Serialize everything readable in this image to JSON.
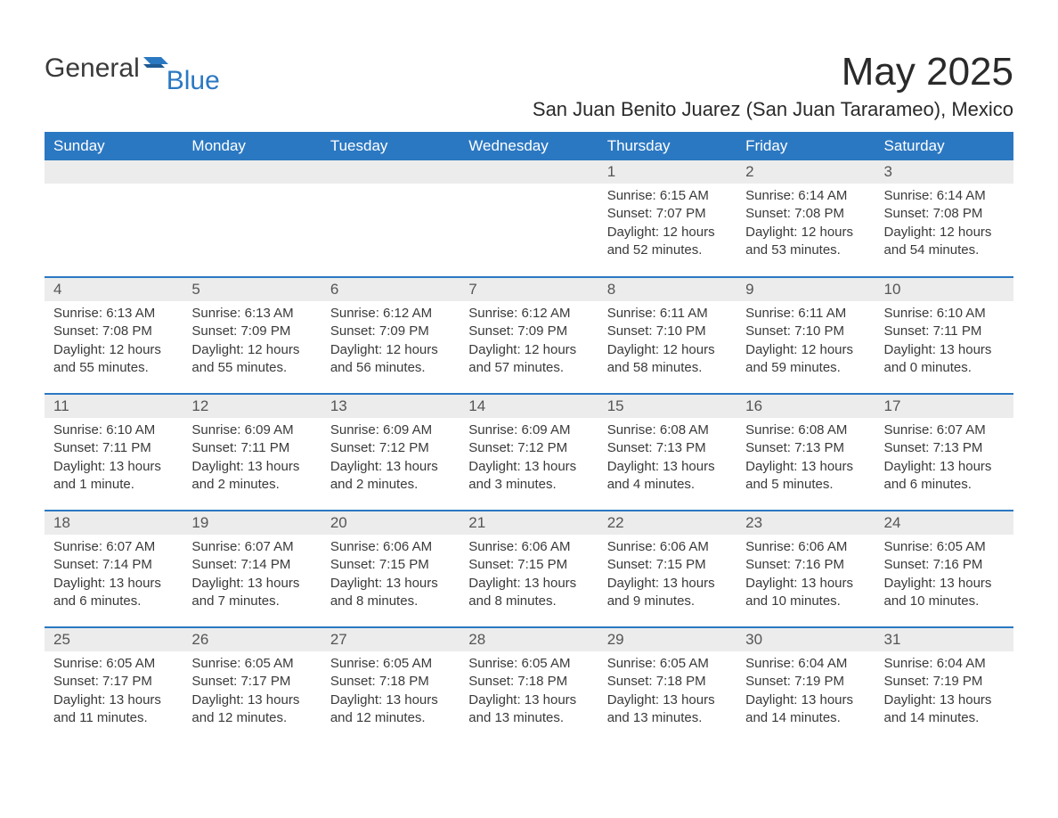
{
  "brand": {
    "text1": "General",
    "text2": "Blue"
  },
  "title": "May 2025",
  "subtitle": "San Juan Benito Juarez (San Juan Tararameo), Mexico",
  "colors": {
    "header_bg": "#2b78c2",
    "header_text": "#ffffff",
    "daynum_bg": "#ececec",
    "row_border": "#2b78c2",
    "body_text": "#3a3a3a",
    "title_text": "#2a2a2a",
    "page_bg": "#ffffff"
  },
  "typography": {
    "title_fontsize": 44,
    "subtitle_fontsize": 22,
    "header_fontsize": 17,
    "daynum_fontsize": 17,
    "data_fontsize": 15
  },
  "weekdays": [
    "Sunday",
    "Monday",
    "Tuesday",
    "Wednesday",
    "Thursday",
    "Friday",
    "Saturday"
  ],
  "layout": {
    "columns": 7,
    "rows": 5,
    "first_day_column_index": 4
  },
  "labels": {
    "sunrise": "Sunrise",
    "sunset": "Sunset",
    "daylight": "Daylight"
  },
  "weeks": [
    [
      null,
      null,
      null,
      null,
      {
        "n": "1",
        "sunrise": "6:15 AM",
        "sunset": "7:07 PM",
        "daylight": "12 hours and 52 minutes."
      },
      {
        "n": "2",
        "sunrise": "6:14 AM",
        "sunset": "7:08 PM",
        "daylight": "12 hours and 53 minutes."
      },
      {
        "n": "3",
        "sunrise": "6:14 AM",
        "sunset": "7:08 PM",
        "daylight": "12 hours and 54 minutes."
      }
    ],
    [
      {
        "n": "4",
        "sunrise": "6:13 AM",
        "sunset": "7:08 PM",
        "daylight": "12 hours and 55 minutes."
      },
      {
        "n": "5",
        "sunrise": "6:13 AM",
        "sunset": "7:09 PM",
        "daylight": "12 hours and 55 minutes."
      },
      {
        "n": "6",
        "sunrise": "6:12 AM",
        "sunset": "7:09 PM",
        "daylight": "12 hours and 56 minutes."
      },
      {
        "n": "7",
        "sunrise": "6:12 AM",
        "sunset": "7:09 PM",
        "daylight": "12 hours and 57 minutes."
      },
      {
        "n": "8",
        "sunrise": "6:11 AM",
        "sunset": "7:10 PM",
        "daylight": "12 hours and 58 minutes."
      },
      {
        "n": "9",
        "sunrise": "6:11 AM",
        "sunset": "7:10 PM",
        "daylight": "12 hours and 59 minutes."
      },
      {
        "n": "10",
        "sunrise": "6:10 AM",
        "sunset": "7:11 PM",
        "daylight": "13 hours and 0 minutes."
      }
    ],
    [
      {
        "n": "11",
        "sunrise": "6:10 AM",
        "sunset": "7:11 PM",
        "daylight": "13 hours and 1 minute."
      },
      {
        "n": "12",
        "sunrise": "6:09 AM",
        "sunset": "7:11 PM",
        "daylight": "13 hours and 2 minutes."
      },
      {
        "n": "13",
        "sunrise": "6:09 AM",
        "sunset": "7:12 PM",
        "daylight": "13 hours and 2 minutes."
      },
      {
        "n": "14",
        "sunrise": "6:09 AM",
        "sunset": "7:12 PM",
        "daylight": "13 hours and 3 minutes."
      },
      {
        "n": "15",
        "sunrise": "6:08 AM",
        "sunset": "7:13 PM",
        "daylight": "13 hours and 4 minutes."
      },
      {
        "n": "16",
        "sunrise": "6:08 AM",
        "sunset": "7:13 PM",
        "daylight": "13 hours and 5 minutes."
      },
      {
        "n": "17",
        "sunrise": "6:07 AM",
        "sunset": "7:13 PM",
        "daylight": "13 hours and 6 minutes."
      }
    ],
    [
      {
        "n": "18",
        "sunrise": "6:07 AM",
        "sunset": "7:14 PM",
        "daylight": "13 hours and 6 minutes."
      },
      {
        "n": "19",
        "sunrise": "6:07 AM",
        "sunset": "7:14 PM",
        "daylight": "13 hours and 7 minutes."
      },
      {
        "n": "20",
        "sunrise": "6:06 AM",
        "sunset": "7:15 PM",
        "daylight": "13 hours and 8 minutes."
      },
      {
        "n": "21",
        "sunrise": "6:06 AM",
        "sunset": "7:15 PM",
        "daylight": "13 hours and 8 minutes."
      },
      {
        "n": "22",
        "sunrise": "6:06 AM",
        "sunset": "7:15 PM",
        "daylight": "13 hours and 9 minutes."
      },
      {
        "n": "23",
        "sunrise": "6:06 AM",
        "sunset": "7:16 PM",
        "daylight": "13 hours and 10 minutes."
      },
      {
        "n": "24",
        "sunrise": "6:05 AM",
        "sunset": "7:16 PM",
        "daylight": "13 hours and 10 minutes."
      }
    ],
    [
      {
        "n": "25",
        "sunrise": "6:05 AM",
        "sunset": "7:17 PM",
        "daylight": "13 hours and 11 minutes."
      },
      {
        "n": "26",
        "sunrise": "6:05 AM",
        "sunset": "7:17 PM",
        "daylight": "13 hours and 12 minutes."
      },
      {
        "n": "27",
        "sunrise": "6:05 AM",
        "sunset": "7:18 PM",
        "daylight": "13 hours and 12 minutes."
      },
      {
        "n": "28",
        "sunrise": "6:05 AM",
        "sunset": "7:18 PM",
        "daylight": "13 hours and 13 minutes."
      },
      {
        "n": "29",
        "sunrise": "6:05 AM",
        "sunset": "7:18 PM",
        "daylight": "13 hours and 13 minutes."
      },
      {
        "n": "30",
        "sunrise": "6:04 AM",
        "sunset": "7:19 PM",
        "daylight": "13 hours and 14 minutes."
      },
      {
        "n": "31",
        "sunrise": "6:04 AM",
        "sunset": "7:19 PM",
        "daylight": "13 hours and 14 minutes."
      }
    ]
  ]
}
